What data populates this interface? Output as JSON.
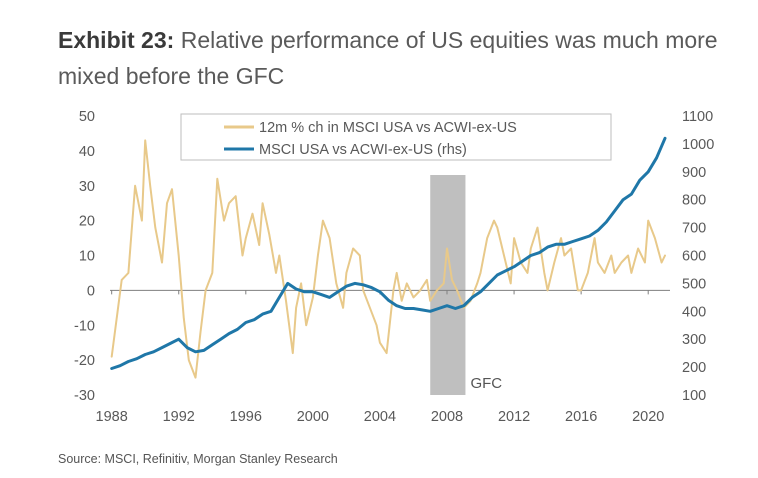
{
  "title": {
    "label": "Exhibit 23:",
    "text": "Relative performance of US equities was much more mixed before the GFC"
  },
  "source": "Source: MSCI, Refinitiv, Morgan Stanley Research",
  "chart_data": {
    "type": "line",
    "x_ticks": [
      "1988",
      "1992",
      "1996",
      "2000",
      "2004",
      "2008",
      "2012",
      "2016",
      "2020"
    ],
    "y_left_ticks": [
      "50",
      "40",
      "30",
      "20",
      "10",
      "0",
      "-10",
      "-20",
      "-30"
    ],
    "y_right_ticks": [
      "1100",
      "1000",
      "900",
      "800",
      "700",
      "600",
      "500",
      "400",
      "300",
      "200",
      "100"
    ],
    "xlim": [
      1987.9,
      2021.3
    ],
    "ylim_left": [
      -30,
      50
    ],
    "ylim_right": [
      100,
      1100
    ],
    "legend_position": "top-center",
    "shaded_region": {
      "label": "GFC",
      "start": 2007.0,
      "end": 2009.1,
      "color": "#bfbfbf"
    },
    "series": [
      {
        "name": "12m % ch in MSCI USA vs ACWI-ex-US",
        "axis": "left",
        "color": "#e8c98a",
        "x": [
          1988.0,
          1988.3,
          1988.6,
          1989.0,
          1989.4,
          1989.8,
          1990.0,
          1990.3,
          1990.6,
          1991.0,
          1991.3,
          1991.6,
          1992.0,
          1992.3,
          1992.6,
          1993.0,
          1993.3,
          1993.6,
          1994.0,
          1994.3,
          1994.7,
          1995.0,
          1995.4,
          1995.8,
          1996.0,
          1996.4,
          1996.8,
          1997.0,
          1997.4,
          1997.8,
          1998.0,
          1998.4,
          1998.8,
          1999.0,
          1999.3,
          1999.6,
          2000.0,
          2000.3,
          2000.6,
          2001.0,
          2001.4,
          2001.8,
          2002.0,
          2002.4,
          2002.8,
          2003.0,
          2003.4,
          2003.8,
          2004.0,
          2004.4,
          2004.8,
          2005.0,
          2005.3,
          2005.6,
          2006.0,
          2006.4,
          2006.8,
          2007.0,
          2007.4,
          2007.8,
          2008.0,
          2008.3,
          2008.6,
          2009.0,
          2009.4,
          2009.8,
          2010.0,
          2010.4,
          2010.8,
          2011.0,
          2011.4,
          2011.8,
          2012.0,
          2012.4,
          2012.8,
          2013.0,
          2013.4,
          2013.8,
          2014.0,
          2014.4,
          2014.8,
          2015.0,
          2015.4,
          2015.8,
          2016.0,
          2016.4,
          2016.8,
          2017.0,
          2017.4,
          2017.8,
          2018.0,
          2018.4,
          2018.8,
          2019.0,
          2019.4,
          2019.8,
          2020.0,
          2020.4,
          2020.8,
          2021.0
        ],
        "values": [
          -19,
          -8,
          3,
          5,
          30,
          20,
          43,
          30,
          18,
          8,
          25,
          29,
          10,
          -8,
          -20,
          -25,
          -12,
          0,
          5,
          32,
          20,
          25,
          27,
          10,
          15,
          22,
          13,
          25,
          16,
          5,
          10,
          -3,
          -18,
          -5,
          2,
          -10,
          -2,
          10,
          20,
          15,
          2,
          -5,
          5,
          12,
          10,
          0,
          -5,
          -10,
          -15,
          -18,
          0,
          5,
          -3,
          2,
          -2,
          0,
          3,
          -3,
          0,
          2,
          12,
          3,
          0,
          -5,
          -3,
          2,
          5,
          15,
          20,
          18,
          10,
          2,
          15,
          8,
          5,
          12,
          18,
          5,
          0,
          8,
          15,
          10,
          12,
          0,
          0,
          5,
          15,
          8,
          5,
          10,
          5,
          8,
          10,
          5,
          12,
          8,
          20,
          15,
          8,
          10
        ]
      },
      {
        "name": "MSCI USA vs ACWI-ex-US (rhs)",
        "axis": "right",
        "color": "#1f77a8",
        "x": [
          1988.0,
          1988.5,
          1989.0,
          1989.5,
          1990.0,
          1990.5,
          1991.0,
          1991.5,
          1992.0,
          1992.5,
          1993.0,
          1993.5,
          1994.0,
          1994.5,
          1995.0,
          1995.5,
          1996.0,
          1996.5,
          1997.0,
          1997.5,
          1998.0,
          1998.5,
          1999.0,
          1999.5,
          2000.0,
          2000.5,
          2001.0,
          2001.5,
          2002.0,
          2002.5,
          2003.0,
          2003.5,
          2004.0,
          2004.5,
          2005.0,
          2005.5,
          2006.0,
          2006.5,
          2007.0,
          2007.5,
          2008.0,
          2008.5,
          2009.0,
          2009.5,
          2010.0,
          2010.5,
          2011.0,
          2011.5,
          2012.0,
          2012.5,
          2013.0,
          2013.5,
          2014.0,
          2014.5,
          2015.0,
          2015.5,
          2016.0,
          2016.5,
          2017.0,
          2017.5,
          2018.0,
          2018.5,
          2019.0,
          2019.5,
          2020.0,
          2020.5,
          2021.0
        ],
        "values": [
          195,
          205,
          220,
          230,
          245,
          255,
          270,
          285,
          300,
          270,
          255,
          260,
          280,
          300,
          320,
          335,
          360,
          370,
          390,
          400,
          450,
          500,
          480,
          470,
          470,
          460,
          450,
          470,
          490,
          500,
          495,
          485,
          470,
          440,
          420,
          410,
          410,
          405,
          400,
          410,
          420,
          410,
          420,
          450,
          470,
          500,
          530,
          545,
          560,
          580,
          600,
          610,
          630,
          640,
          640,
          650,
          660,
          670,
          690,
          720,
          760,
          800,
          820,
          870,
          900,
          950,
          1020
        ]
      }
    ]
  }
}
